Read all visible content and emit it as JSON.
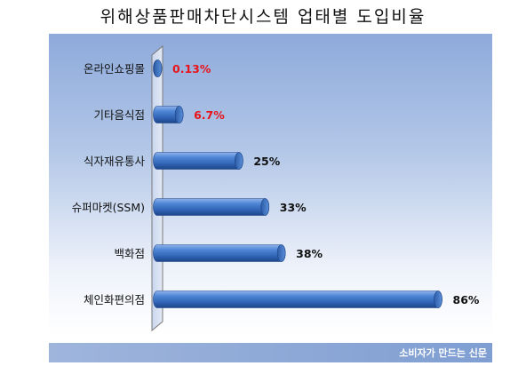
{
  "chart_data": {
    "type": "bar",
    "orientation": "horizontal",
    "title": "위해상품판매차단시스템 업태별 도입비율",
    "categories": [
      "온라인쇼핑몰",
      "기타음식점",
      "식자재유통사",
      "슈퍼마켓(SSM)",
      "백화점",
      "체인화편의점"
    ],
    "values": [
      0.13,
      6.7,
      25,
      33,
      38,
      86
    ],
    "value_labels": [
      "0.13%",
      "6.7%",
      "25%",
      "33%",
      "38%",
      "86%"
    ],
    "label_colors": [
      "#e8141a",
      "#e8141a",
      "#111111",
      "#111111",
      "#111111",
      "#111111"
    ],
    "xlim": [
      0,
      90
    ],
    "grid": false,
    "bar_color": "#3a6fc0"
  },
  "footer": {
    "source": "소비자가 만드는 신문"
  }
}
